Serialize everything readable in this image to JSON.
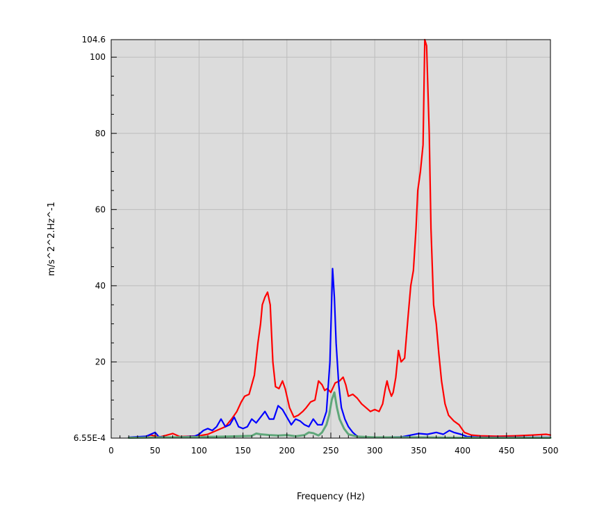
{
  "chart_data": {
    "type": "line",
    "title": "",
    "xlabel": "Frequency (Hz)",
    "ylabel": "m/s^2^2.Hz^-1",
    "xlim": [
      0,
      500
    ],
    "ylim": [
      0.000655,
      104.6
    ],
    "x_ticks": [
      0,
      50,
      100,
      150,
      200,
      250,
      300,
      350,
      400,
      450,
      500
    ],
    "x_tick_labels": [
      "0",
      "50",
      "100",
      "150",
      "200",
      "250",
      "300",
      "350",
      "400",
      "450",
      "500"
    ],
    "y_ticks": [
      0.000655,
      20,
      40,
      60,
      80,
      100,
      104.6
    ],
    "y_tick_labels": [
      "6.55E-4",
      "20",
      "40",
      "60",
      "80",
      "100",
      "104.6"
    ],
    "grid": true,
    "legend": "none",
    "colors": {
      "plot_background": "#dcdcdc",
      "grid": "#bdbdbd",
      "red_series": "#ff0000",
      "blue_series": "#0000ff",
      "green_series": "#5fa77a"
    },
    "series": [
      {
        "color": "#ff0000",
        "points": [
          [
            35,
            0.2
          ],
          [
            45,
            0.8
          ],
          [
            55,
            0.3
          ],
          [
            62,
            0.7
          ],
          [
            70,
            1.2
          ],
          [
            78,
            0.4
          ],
          [
            90,
            0.5
          ],
          [
            100,
            0.6
          ],
          [
            110,
            1.0
          ],
          [
            120,
            2.0
          ],
          [
            130,
            3.0
          ],
          [
            137,
            5.0
          ],
          [
            143,
            7.0
          ],
          [
            148,
            9.5
          ],
          [
            152,
            11.0
          ],
          [
            157,
            11.5
          ],
          [
            160,
            14.0
          ],
          [
            163,
            16.5
          ],
          [
            167,
            25.0
          ],
          [
            170,
            30.0
          ],
          [
            172,
            35.0
          ],
          [
            175,
            37.0
          ],
          [
            178,
            38.3
          ],
          [
            181,
            35.0
          ],
          [
            184,
            20.0
          ],
          [
            187,
            13.5
          ],
          [
            191,
            13.0
          ],
          [
            195,
            15.0
          ],
          [
            198,
            13.0
          ],
          [
            203,
            8.0
          ],
          [
            208,
            5.5
          ],
          [
            213,
            6.0
          ],
          [
            218,
            7.0
          ],
          [
            222,
            8.0
          ],
          [
            227,
            9.5
          ],
          [
            232,
            10.0
          ],
          [
            236,
            15.0
          ],
          [
            240,
            14.0
          ],
          [
            243,
            12.5
          ],
          [
            246,
            13.0
          ],
          [
            250,
            12.0
          ],
          [
            255,
            14.5
          ],
          [
            260,
            15.0
          ],
          [
            264,
            16.0
          ],
          [
            267,
            14.0
          ],
          [
            270,
            11.0
          ],
          [
            275,
            11.5
          ],
          [
            280,
            10.5
          ],
          [
            285,
            9.0
          ],
          [
            290,
            8.0
          ],
          [
            295,
            7.0
          ],
          [
            300,
            7.5
          ],
          [
            305,
            7.0
          ],
          [
            309,
            9.0
          ],
          [
            312,
            13.0
          ],
          [
            314,
            15.0
          ],
          [
            316,
            13.0
          ],
          [
            319,
            11.0
          ],
          [
            321,
            12.0
          ],
          [
            324,
            16.0
          ],
          [
            327,
            23.0
          ],
          [
            330,
            20.0
          ],
          [
            334,
            21.0
          ],
          [
            338,
            32.0
          ],
          [
            341,
            40.0
          ],
          [
            344,
            44.0
          ],
          [
            347,
            55.0
          ],
          [
            349,
            65.0
          ],
          [
            352,
            70.0
          ],
          [
            355,
            77.0
          ],
          [
            357,
            104.6
          ],
          [
            359,
            103.0
          ],
          [
            362,
            80.0
          ],
          [
            364,
            55.0
          ],
          [
            367,
            35.0
          ],
          [
            370,
            30.0
          ],
          [
            373,
            22.0
          ],
          [
            376,
            15.0
          ],
          [
            380,
            9.0
          ],
          [
            384,
            6.0
          ],
          [
            390,
            4.5
          ],
          [
            396,
            3.5
          ],
          [
            402,
            1.5
          ],
          [
            410,
            0.8
          ],
          [
            420,
            0.6
          ],
          [
            440,
            0.5
          ],
          [
            460,
            0.6
          ],
          [
            480,
            0.8
          ],
          [
            495,
            1.0
          ],
          [
            500,
            0.8
          ]
        ]
      },
      {
        "color": "#0000ff",
        "points": [
          [
            20,
            0.2
          ],
          [
            40,
            0.5
          ],
          [
            50,
            1.5
          ],
          [
            54,
            0.4
          ],
          [
            65,
            0.2
          ],
          [
            80,
            0.3
          ],
          [
            95,
            0.5
          ],
          [
            100,
            1.0
          ],
          [
            105,
            2.0
          ],
          [
            110,
            2.5
          ],
          [
            115,
            2.0
          ],
          [
            120,
            3.0
          ],
          [
            125,
            5.0
          ],
          [
            130,
            3.0
          ],
          [
            135,
            3.5
          ],
          [
            140,
            5.5
          ],
          [
            145,
            3.0
          ],
          [
            150,
            2.5
          ],
          [
            155,
            3.0
          ],
          [
            160,
            5.0
          ],
          [
            165,
            4.0
          ],
          [
            170,
            5.5
          ],
          [
            175,
            7.0
          ],
          [
            180,
            5.0
          ],
          [
            185,
            5.0
          ],
          [
            190,
            8.5
          ],
          [
            195,
            7.5
          ],
          [
            200,
            5.5
          ],
          [
            205,
            3.5
          ],
          [
            210,
            5.0
          ],
          [
            215,
            4.5
          ],
          [
            220,
            3.5
          ],
          [
            225,
            3.0
          ],
          [
            230,
            5.0
          ],
          [
            235,
            3.5
          ],
          [
            240,
            3.5
          ],
          [
            245,
            7.0
          ],
          [
            249,
            20.0
          ],
          [
            252,
            44.5
          ],
          [
            254,
            37.0
          ],
          [
            256,
            25.0
          ],
          [
            259,
            14.0
          ],
          [
            262,
            8.0
          ],
          [
            266,
            5.0
          ],
          [
            270,
            3.0
          ],
          [
            275,
            1.5
          ],
          [
            280,
            0.5
          ],
          [
            290,
            0.2
          ],
          [
            300,
            0.2
          ],
          [
            330,
            0.3
          ],
          [
            350,
            1.2
          ],
          [
            360,
            1.0
          ],
          [
            370,
            1.5
          ],
          [
            378,
            1.0
          ],
          [
            385,
            2.0
          ],
          [
            390,
            1.5
          ],
          [
            398,
            1.0
          ],
          [
            405,
            0.4
          ],
          [
            420,
            0.2
          ],
          [
            450,
            0.2
          ],
          [
            500,
            0.2
          ]
        ]
      },
      {
        "color": "#5fa77a",
        "points": [
          [
            20,
            0.1
          ],
          [
            60,
            0.2
          ],
          [
            100,
            0.3
          ],
          [
            130,
            0.4
          ],
          [
            160,
            0.6
          ],
          [
            165,
            1.2
          ],
          [
            170,
            1.0
          ],
          [
            180,
            0.8
          ],
          [
            190,
            0.7
          ],
          [
            200,
            0.8
          ],
          [
            210,
            0.5
          ],
          [
            220,
            0.8
          ],
          [
            225,
            1.5
          ],
          [
            230,
            1.3
          ],
          [
            236,
            0.7
          ],
          [
            240,
            1.5
          ],
          [
            245,
            3.5
          ],
          [
            248,
            6.0
          ],
          [
            251,
            10.0
          ],
          [
            254,
            12.0
          ],
          [
            257,
            8.0
          ],
          [
            260,
            5.0
          ],
          [
            265,
            2.5
          ],
          [
            270,
            1.0
          ],
          [
            280,
            0.4
          ],
          [
            300,
            0.2
          ],
          [
            350,
            0.2
          ],
          [
            400,
            0.1
          ],
          [
            450,
            0.1
          ],
          [
            500,
            0.1
          ]
        ]
      }
    ]
  }
}
